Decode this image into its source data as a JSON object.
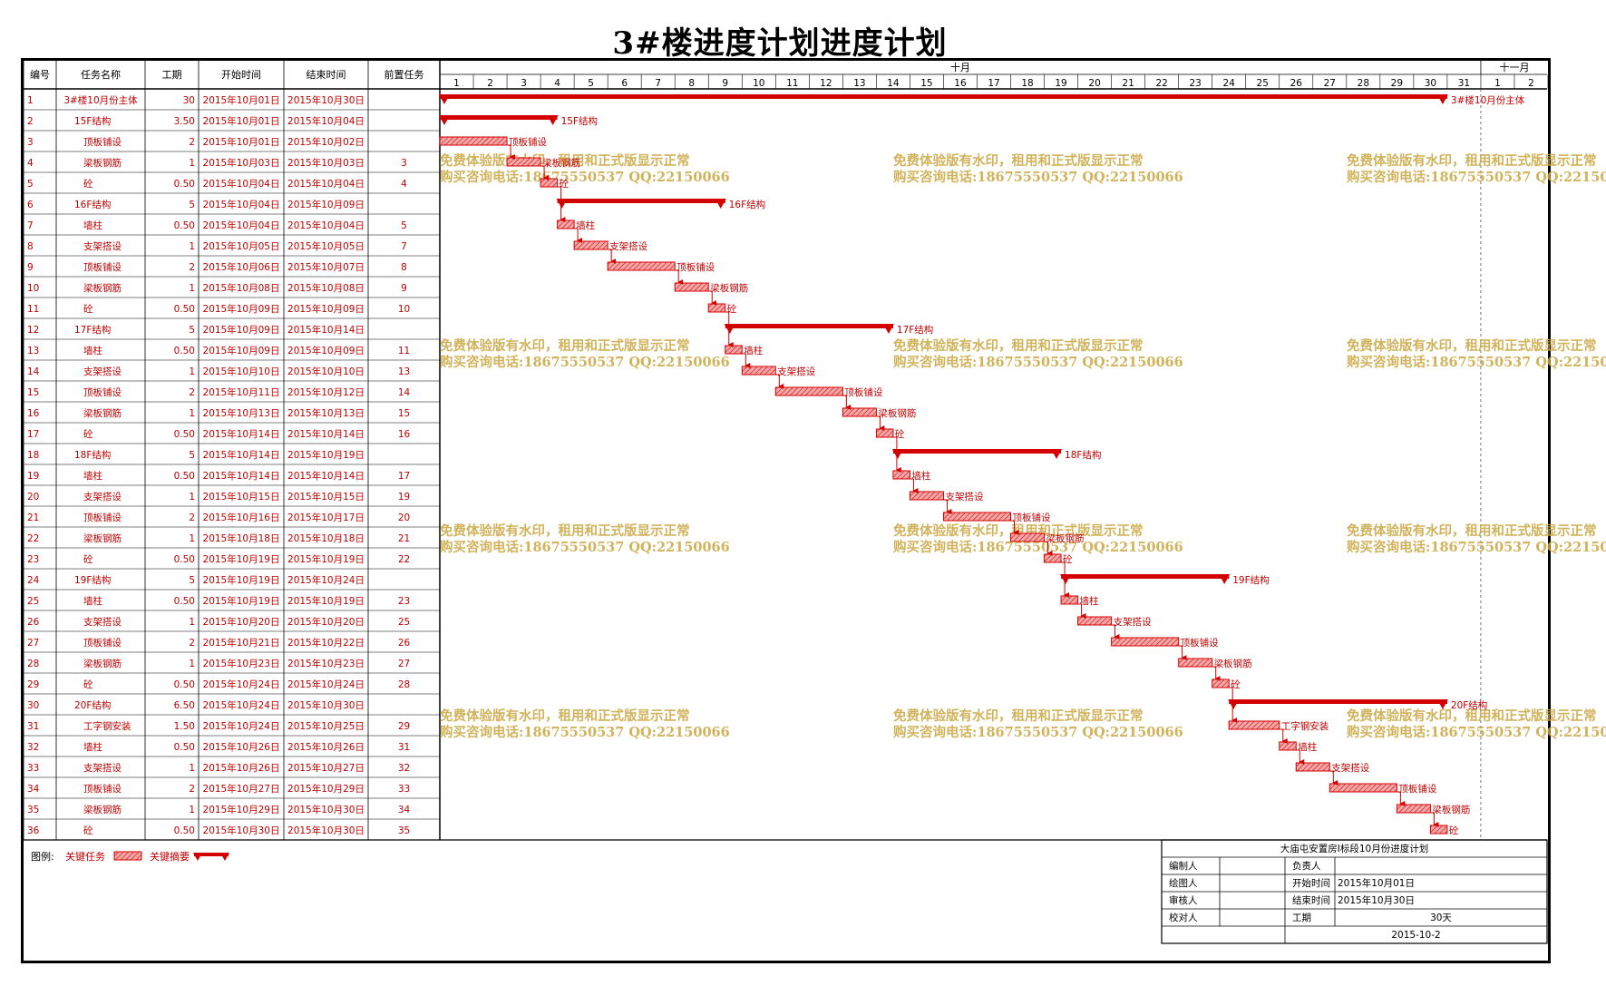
{
  "title": "3#楼进度计划进度计划",
  "table_headers": [
    "编号",
    "任务名称",
    "工期",
    "开始时间",
    "结束时间",
    "前置任务"
  ],
  "month_labels": [
    "十月",
    "十一月"
  ],
  "day_labels": [
    "1",
    "2",
    "3",
    "4",
    "5",
    "6",
    "7",
    "8",
    "9",
    "10",
    "11",
    "12",
    "13",
    "14",
    "15",
    "16",
    "17",
    "18",
    "19",
    "20",
    "21",
    "22",
    "23",
    "24",
    "25",
    "26",
    "27",
    "28",
    "29",
    "30",
    "31",
    "1",
    "2"
  ],
  "tasks": [
    {
      "id": "1",
      "name": "3#楼10月份主体",
      "dur": "30",
      "start": "2015年10月01日",
      "end": "2015年10月30日",
      "pred": "",
      "s": 0,
      "e": 30,
      "summary": true,
      "level": 0
    },
    {
      "id": "2",
      "name": "15F结构",
      "dur": "3.50",
      "start": "2015年10月01日",
      "end": "2015年10月04日",
      "pred": "",
      "s": 0,
      "e": 3.5,
      "summary": true,
      "level": 1
    },
    {
      "id": "3",
      "name": "顶板铺设",
      "dur": "2",
      "start": "2015年10月01日",
      "end": "2015年10月02日",
      "pred": "",
      "s": 0,
      "e": 2,
      "summary": false,
      "level": 2
    },
    {
      "id": "4",
      "name": "梁板钢筋",
      "dur": "1",
      "start": "2015年10月03日",
      "end": "2015年10月03日",
      "pred": "3",
      "s": 2,
      "e": 3,
      "summary": false,
      "level": 2
    },
    {
      "id": "5",
      "name": "砼",
      "dur": "0.50",
      "start": "2015年10月04日",
      "end": "2015年10月04日",
      "pred": "4",
      "s": 3,
      "e": 3.5,
      "summary": false,
      "level": 2
    },
    {
      "id": "6",
      "name": "16F结构",
      "dur": "5",
      "start": "2015年10月04日",
      "end": "2015年10月09日",
      "pred": "",
      "s": 3.5,
      "e": 8.5,
      "summary": true,
      "level": 1
    },
    {
      "id": "7",
      "name": "墙柱",
      "dur": "0.50",
      "start": "2015年10月04日",
      "end": "2015年10月04日",
      "pred": "5",
      "s": 3.5,
      "e": 4,
      "summary": false,
      "level": 2
    },
    {
      "id": "8",
      "name": "支架搭设",
      "dur": "1",
      "start": "2015年10月05日",
      "end": "2015年10月05日",
      "pred": "7",
      "s": 4,
      "e": 5,
      "summary": false,
      "level": 2
    },
    {
      "id": "9",
      "name": "顶板铺设",
      "dur": "2",
      "start": "2015年10月06日",
      "end": "2015年10月07日",
      "pred": "8",
      "s": 5,
      "e": 7,
      "summary": false,
      "level": 2
    },
    {
      "id": "10",
      "name": "梁板钢筋",
      "dur": "1",
      "start": "2015年10月08日",
      "end": "2015年10月08日",
      "pred": "9",
      "s": 7,
      "e": 8,
      "summary": false,
      "level": 2
    },
    {
      "id": "11",
      "name": "砼",
      "dur": "0.50",
      "start": "2015年10月09日",
      "end": "2015年10月09日",
      "pred": "10",
      "s": 8,
      "e": 8.5,
      "summary": false,
      "level": 2
    },
    {
      "id": "12",
      "name": "17F结构",
      "dur": "5",
      "start": "2015年10月09日",
      "end": "2015年10月14日",
      "pred": "",
      "s": 8.5,
      "e": 13.5,
      "summary": true,
      "level": 1
    },
    {
      "id": "13",
      "name": "墙柱",
      "dur": "0.50",
      "start": "2015年10月09日",
      "end": "2015年10月09日",
      "pred": "11",
      "s": 8.5,
      "e": 9,
      "summary": false,
      "level": 2
    },
    {
      "id": "14",
      "name": "支架搭设",
      "dur": "1",
      "start": "2015年10月10日",
      "end": "2015年10月10日",
      "pred": "13",
      "s": 9,
      "e": 10,
      "summary": false,
      "level": 2
    },
    {
      "id": "15",
      "name": "顶板铺设",
      "dur": "2",
      "start": "2015年10月11日",
      "end": "2015年10月12日",
      "pred": "14",
      "s": 10,
      "e": 12,
      "summary": false,
      "level": 2
    },
    {
      "id": "16",
      "name": "梁板钢筋",
      "dur": "1",
      "start": "2015年10月13日",
      "end": "2015年10月13日",
      "pred": "15",
      "s": 12,
      "e": 13,
      "summary": false,
      "level": 2
    },
    {
      "id": "17",
      "name": "砼",
      "dur": "0.50",
      "start": "2015年10月14日",
      "end": "2015年10月14日",
      "pred": "16",
      "s": 13,
      "e": 13.5,
      "summary": false,
      "level": 2
    },
    {
      "id": "18",
      "name": "18F结构",
      "dur": "5",
      "start": "2015年10月14日",
      "end": "2015年10月19日",
      "pred": "",
      "s": 13.5,
      "e": 18.5,
      "summary": true,
      "level": 1
    },
    {
      "id": "19",
      "name": "墙柱",
      "dur": "0.50",
      "start": "2015年10月14日",
      "end": "2015年10月14日",
      "pred": "17",
      "s": 13.5,
      "e": 14,
      "summary": false,
      "level": 2
    },
    {
      "id": "20",
      "name": "支架搭设",
      "dur": "1",
      "start": "2015年10月15日",
      "end": "2015年10月15日",
      "pred": "19",
      "s": 14,
      "e": 15,
      "summary": false,
      "level": 2
    },
    {
      "id": "21",
      "name": "顶板铺设",
      "dur": "2",
      "start": "2015年10月16日",
      "end": "2015年10月17日",
      "pred": "20",
      "s": 15,
      "e": 17,
      "summary": false,
      "level": 2
    },
    {
      "id": "22",
      "name": "梁板钢筋",
      "dur": "1",
      "start": "2015年10月18日",
      "end": "2015年10月18日",
      "pred": "21",
      "s": 17,
      "e": 18,
      "summary": false,
      "level": 2
    },
    {
      "id": "23",
      "name": "砼",
      "dur": "0.50",
      "start": "2015年10月19日",
      "end": "2015年10月19日",
      "pred": "22",
      "s": 18,
      "e": 18.5,
      "summary": false,
      "level": 2
    },
    {
      "id": "24",
      "name": "19F结构",
      "dur": "5",
      "start": "2015年10月19日",
      "end": "2015年10月24日",
      "pred": "",
      "s": 18.5,
      "e": 23.5,
      "summary": true,
      "level": 1
    },
    {
      "id": "25",
      "name": "墙柱",
      "dur": "0.50",
      "start": "2015年10月19日",
      "end": "2015年10月19日",
      "pred": "23",
      "s": 18.5,
      "e": 19,
      "summary": false,
      "level": 2
    },
    {
      "id": "26",
      "name": "支架搭设",
      "dur": "1",
      "start": "2015年10月20日",
      "end": "2015年10月20日",
      "pred": "25",
      "s": 19,
      "e": 20,
      "summary": false,
      "level": 2
    },
    {
      "id": "27",
      "name": "顶板铺设",
      "dur": "2",
      "start": "2015年10月21日",
      "end": "2015年10月22日",
      "pred": "26",
      "s": 20,
      "e": 22,
      "summary": false,
      "level": 2
    },
    {
      "id": "28",
      "name": "梁板钢筋",
      "dur": "1",
      "start": "2015年10月23日",
      "end": "2015年10月23日",
      "pred": "27",
      "s": 22,
      "e": 23,
      "summary": false,
      "level": 2
    },
    {
      "id": "29",
      "name": "砼",
      "dur": "0.50",
      "start": "2015年10月24日",
      "end": "2015年10月24日",
      "pred": "28",
      "s": 23,
      "e": 23.5,
      "summary": false,
      "level": 2
    },
    {
      "id": "30",
      "name": "20F结构",
      "dur": "6.50",
      "start": "2015年10月24日",
      "end": "2015年10月30日",
      "pred": "",
      "s": 23.5,
      "e": 30,
      "summary": true,
      "level": 1
    },
    {
      "id": "31",
      "name": "工字钢安装",
      "dur": "1.50",
      "start": "2015年10月24日",
      "end": "2015年10月25日",
      "pred": "29",
      "s": 23.5,
      "e": 25,
      "summary": false,
      "level": 2
    },
    {
      "id": "32",
      "name": "墙柱",
      "dur": "0.50",
      "start": "2015年10月26日",
      "end": "2015年10月26日",
      "pred": "31",
      "s": 25,
      "e": 25.5,
      "summary": false,
      "level": 2
    },
    {
      "id": "33",
      "name": "支架搭设",
      "dur": "1",
      "start": "2015年10月26日",
      "end": "2015年10月27日",
      "pred": "32",
      "s": 25.5,
      "e": 26.5,
      "summary": false,
      "level": 2
    },
    {
      "id": "34",
      "name": "顶板铺设",
      "dur": "2",
      "start": "2015年10月27日",
      "end": "2015年10月29日",
      "pred": "33",
      "s": 26.5,
      "e": 28.5,
      "summary": false,
      "level": 2
    },
    {
      "id": "35",
      "name": "梁板钢筋",
      "dur": "1",
      "start": "2015年10月29日",
      "end": "2015年10月30日",
      "pred": "34",
      "s": 28.5,
      "e": 29.5,
      "summary": false,
      "level": 2
    },
    {
      "id": "36",
      "name": "砼",
      "dur": "0.50",
      "start": "2015年10月30日",
      "end": "2015年10月30日",
      "pred": "35",
      "s": 29.5,
      "e": 30,
      "summary": false,
      "level": 2
    }
  ],
  "watermark": {
    "line1": "免费体验版有水印，租用和正式版显示正常",
    "line2": "购买咨询电话:18675550537 QQ:22150066"
  },
  "legend": {
    "label": "图例:",
    "critical_task": "关键任务",
    "critical_summary": "关键摘要"
  },
  "info": {
    "title": "大庙屯安置房Ⅰ标段10月份进度计划",
    "compiler_label": "编制人",
    "compiler": "",
    "owner_label": "负责人",
    "owner": "",
    "drawer_label": "绘图人",
    "drawer": "",
    "start_label": "开始时间",
    "start": "2015年10月01日",
    "reviewer_label": "审核人",
    "reviewer": "",
    "end_label": "结束时间",
    "end": "2015年10月30日",
    "checker_label": "校对人",
    "checker": "",
    "duration_label": "工期",
    "duration": "30天",
    "date": "2015-10-2"
  },
  "colors": {
    "critical": "#d40000",
    "watermark": "#c9a640",
    "text": "#c00000"
  }
}
